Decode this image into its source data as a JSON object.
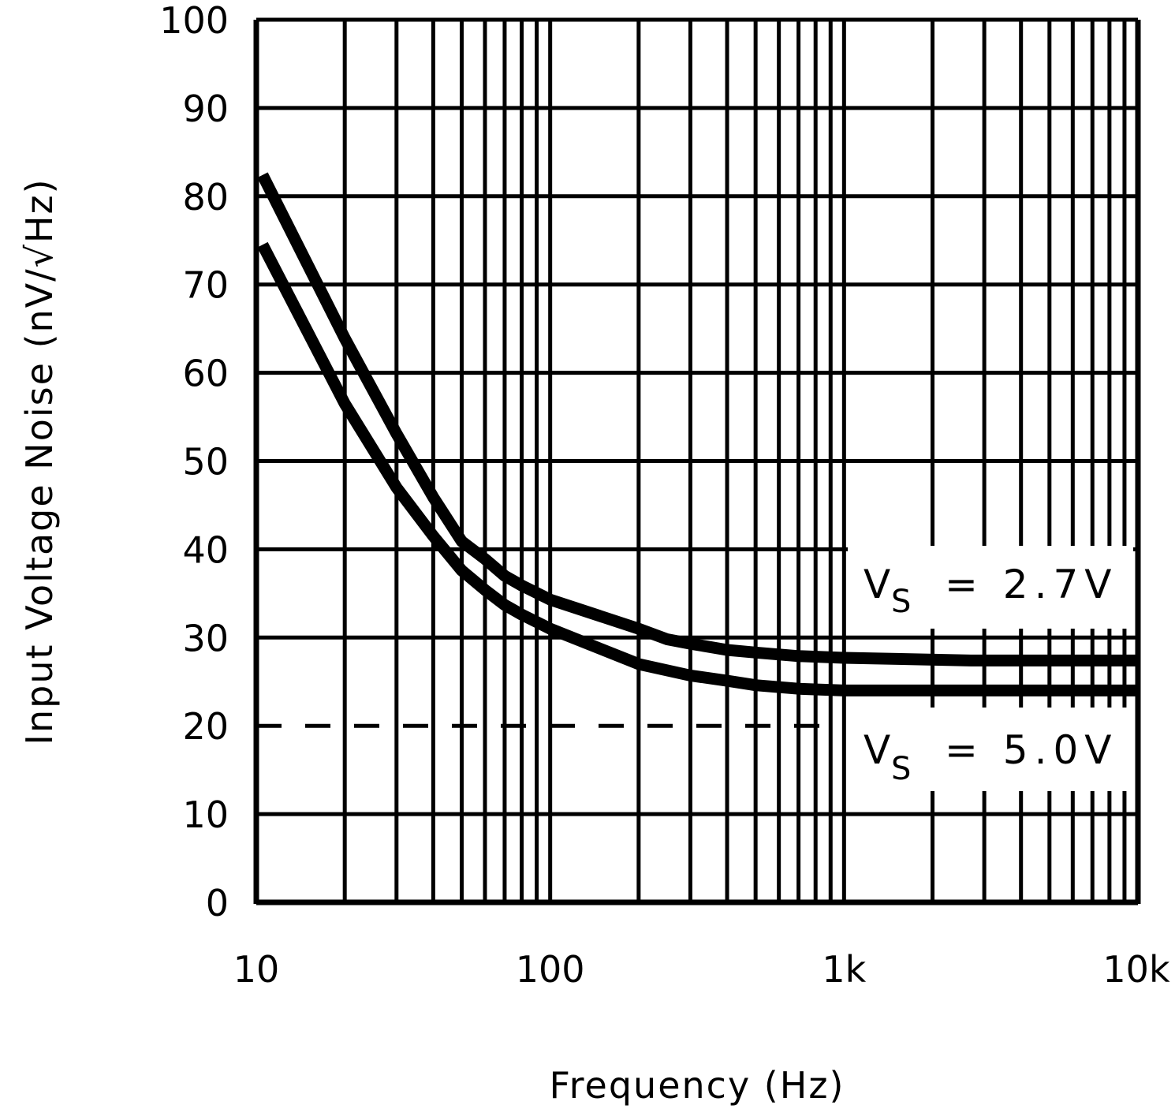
{
  "chart_data": {
    "type": "line",
    "title": "",
    "xlabel": "Frequency (Hz)",
    "ylabel": "Input Voltage Noise (nV/√Hz)",
    "xscale": "log",
    "xlim": [
      10,
      10000
    ],
    "ylim": [
      0,
      100
    ],
    "grid": true,
    "x_tick_values": [
      10,
      100,
      1000,
      10000
    ],
    "x_tick_labels": [
      "10",
      "100",
      "1k",
      "10k"
    ],
    "y_ticks": [
      0,
      10,
      20,
      30,
      40,
      50,
      60,
      70,
      80,
      90,
      100
    ],
    "y_tick_labels": [
      "0",
      "10",
      "20",
      "30",
      "40",
      "50",
      "60",
      "70",
      "80",
      "90",
      "100"
    ],
    "reference_line": {
      "y": 20,
      "style": "dashed"
    },
    "series": [
      {
        "name": "VS = 2.7V",
        "x": [
          10.5,
          20,
          30,
          40,
          50,
          60,
          70,
          80,
          100,
          200,
          250,
          300,
          400,
          500,
          700,
          1000,
          2700,
          10000
        ],
        "y": [
          82.4,
          63.9,
          53.1,
          45.9,
          40.9,
          38.9,
          37.0,
          35.9,
          34.3,
          31.0,
          29.8,
          29.3,
          28.6,
          28.3,
          27.9,
          27.7,
          27.4,
          27.4
        ]
      },
      {
        "name": "VS = 5.0V",
        "x": [
          10.5,
          20,
          30,
          40,
          50,
          60,
          70,
          80,
          100,
          200,
          300,
          400,
          500,
          700,
          1000,
          10000
        ],
        "y": [
          74.5,
          56.5,
          47.0,
          41.5,
          37.6,
          35.4,
          33.7,
          32.6,
          31.0,
          27.0,
          25.7,
          25.1,
          24.6,
          24.2,
          24.0,
          24.0
        ]
      }
    ],
    "annotations": [
      {
        "main": "V",
        "sub": "S",
        "rest": "= 2.7V"
      },
      {
        "main": "V",
        "sub": "S",
        "rest": "= 5.0V"
      }
    ]
  }
}
